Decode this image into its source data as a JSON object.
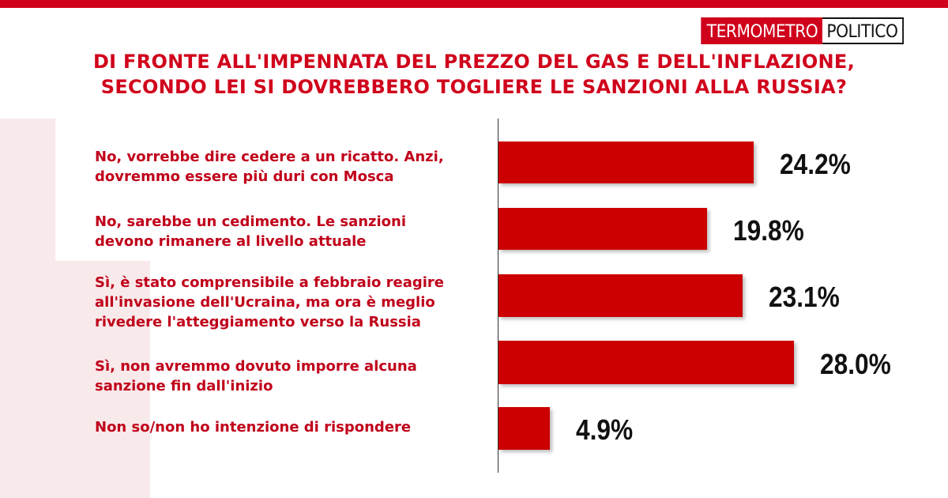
{
  "logo": {
    "part1": "TERMOMETRO",
    "part2": "POLITICO"
  },
  "title": {
    "line1": "DI FRONTE ALL'IMPENNATA DEL PREZZO DEL GAS E DELL'INFLAZIONE,",
    "line2": "SECONDO LEI SI DOVREBBERO TOGLIERE LE SANZIONI ALLA RUSSIA?"
  },
  "colors": {
    "accent": "#d0021b",
    "bar": "#cc0000",
    "value_text": "#111111"
  },
  "chart_data": {
    "type": "bar",
    "orientation": "horizontal",
    "categories": [
      [
        "No, vorrebbe dire cedere a un ricatto. Anzi,",
        "dovremmo essere più duri con Mosca"
      ],
      [
        "No, sarebbe un cedimento. Le sanzioni",
        "devono rimanere al livello attuale"
      ],
      [
        "Sì, è stato comprensibile a febbraio reagire",
        "all'invasione dell'Ucraina, ma ora è meglio",
        "rivedere l'atteggiamento verso la Russia"
      ],
      [
        "Sì, non avremmo dovuto imporre alcuna",
        "sanzione fin dall'inizio"
      ],
      [
        "Non so/non ho intenzione di rispondere"
      ]
    ],
    "values": [
      24.2,
      19.8,
      23.1,
      28.0,
      4.9
    ],
    "value_labels": [
      "24.2%",
      "19.8%",
      "23.1%",
      "28.0%",
      "4.9%"
    ],
    "xlim": [
      0,
      28
    ],
    "grid": false,
    "legend": "none"
  }
}
